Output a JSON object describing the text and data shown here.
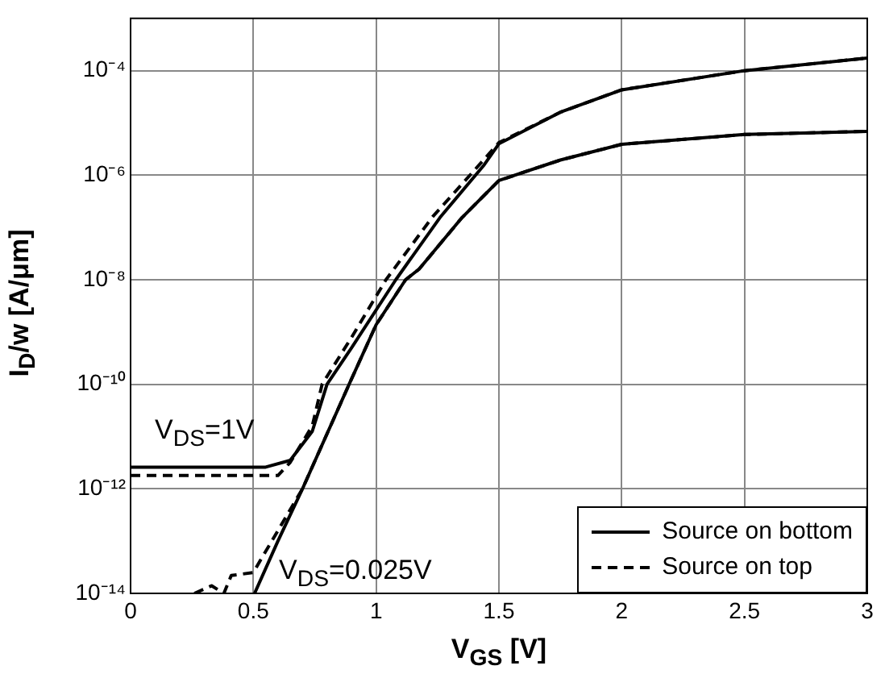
{
  "chart_data": {
    "type": "line",
    "xlabel": "V$_{GS}$ [V]",
    "ylabel": "I$_{D}$/w [A/μm]",
    "log": "y",
    "grid": true,
    "marker": "none",
    "legend": "bottom right",
    "xlim": [
      0,
      3
    ],
    "xticks": [
      0,
      0.5,
      1,
      1.5,
      2,
      2.5,
      3
    ],
    "ylim": [
      1e-14,
      0.001
    ],
    "yticks": [
      {
        "value": 1e-14,
        "label": "10⁻¹⁴"
      },
      {
        "value": 1e-12,
        "label": "10⁻¹²"
      },
      {
        "value": 1e-10,
        "label": "10⁻¹⁰"
      },
      {
        "value": 1e-08,
        "label": "10⁻⁸"
      },
      {
        "value": 1e-06,
        "label": "10⁻⁶"
      },
      {
        "value": 0.0001,
        "label": "10⁻⁴"
      }
    ],
    "annotations": [
      "V$_{DS}$=1V",
      "V$_{DS}$=0.025V"
    ],
    "series": [
      {
        "name": "Source on bottom",
        "color": "#000000",
        "line_style": "solid",
        "x": [
          0,
          0.55,
          0.65,
          0.74,
          0.8,
          0.9,
          1.08,
          1.26,
          1.44,
          1.5,
          1.75,
          2,
          2.5,
          3
        ],
        "values": [
          2.6e-12,
          2.6e-12,
          3.5e-12,
          1.26e-11,
          1e-10,
          5e-10,
          1e-08,
          1.55e-07,
          1.58e-06,
          4e-06,
          1.6e-05,
          4.3e-05,
          0.0001,
          0.000174
        ]
      },
      {
        "name": "Source on top",
        "color": "#000000",
        "line_style": "dashed",
        "x": [
          0,
          0.6,
          0.65,
          0.74,
          0.78,
          0.9,
          1.04,
          1.23,
          1.42,
          1.5,
          1.75,
          2,
          2.5,
          3
        ],
        "values": [
          1.8e-12,
          1.8e-12,
          3.2e-12,
          1.6e-11,
          1e-10,
          7.9e-10,
          1e-08,
          1.6e-07,
          1.58e-06,
          4.2e-06,
          1.6e-05,
          4.3e-05,
          0.0001,
          0.000174
        ]
      },
      {
        "color": "#000000",
        "line_style": "solid",
        "x": [
          0.505,
          0.6,
          0.7,
          0.89,
          1,
          1.12,
          1.175,
          1.35,
          1.5,
          1.75,
          2,
          2.5,
          3
        ],
        "values": [
          1e-14,
          1e-13,
          1e-12,
          1e-10,
          1.38e-09,
          1e-08,
          1.6e-08,
          1.55e-07,
          7.9e-07,
          1.95e-06,
          3.9e-06,
          6e-06,
          6.9e-06
        ]
      },
      {
        "color": "#000000",
        "line_style": "dashed",
        "x": [
          0.26,
          0.33,
          0.38,
          0.41,
          0.5,
          0.53,
          0.585,
          0.7,
          0.89,
          1,
          1.12,
          1.175,
          1.35,
          1.5,
          1.75,
          2,
          2.5,
          3
        ],
        "values": [
          1e-14,
          1.4e-14,
          1e-14,
          2.2e-14,
          2.5e-14,
          4.4e-14,
          1.2e-13,
          1e-12,
          1e-10,
          1.38e-09,
          1e-08,
          1.6e-08,
          1.55e-07,
          7.9e-07,
          1.95e-06,
          3.9e-06,
          6e-06,
          6.9e-06
        ]
      }
    ]
  }
}
